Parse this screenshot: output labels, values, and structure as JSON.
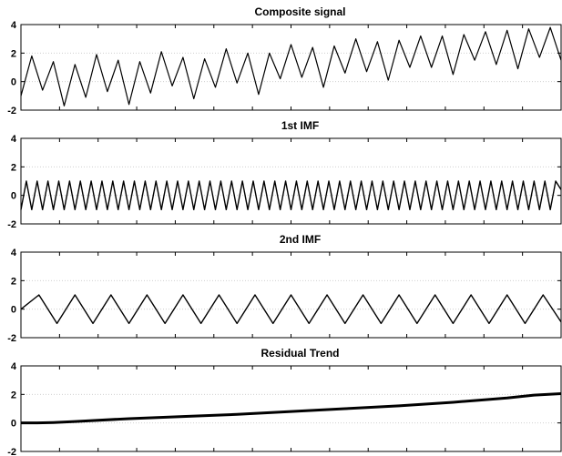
{
  "chart_data": [
    {
      "type": "line",
      "title": "Composite signal",
      "xlabel": "",
      "ylabel": "",
      "ylim": [
        -2,
        4
      ],
      "yticks": [
        -2,
        0,
        2,
        4
      ],
      "grid": "horizontal dotted",
      "x_range": [
        0,
        1000
      ],
      "series": [
        {
          "description": "sum of 1st IMF, 2nd IMF and residual trend",
          "color": "#000000",
          "x": [
            0,
            20,
            40,
            60,
            80,
            100,
            120,
            140,
            160,
            180,
            200,
            220,
            240,
            260,
            280,
            300,
            320,
            340,
            360,
            380,
            400,
            420,
            440,
            460,
            480,
            500,
            520,
            540,
            560,
            580,
            600,
            620,
            640,
            660,
            680,
            700,
            720,
            740,
            760,
            780,
            800,
            820,
            840,
            860,
            880,
            900,
            920,
            940,
            960,
            980,
            1000
          ],
          "y": [
            -1.0,
            1.8,
            -0.6,
            1.4,
            -1.7,
            1.2,
            -1.1,
            1.9,
            -0.7,
            1.5,
            -1.6,
            1.4,
            -0.8,
            2.1,
            -0.3,
            1.7,
            -1.2,
            1.6,
            -0.4,
            2.3,
            -0.1,
            2.0,
            -0.9,
            2.0,
            0.2,
            2.6,
            0.3,
            2.4,
            -0.4,
            2.5,
            0.6,
            3.0,
            0.7,
            2.8,
            0.1,
            2.9,
            1.0,
            3.2,
            1.0,
            3.2,
            0.5,
            3.3,
            1.5,
            3.5,
            1.2,
            3.6,
            0.9,
            3.7,
            1.7,
            3.8,
            1.5
          ]
        }
      ]
    },
    {
      "type": "line",
      "title": "1st IMF",
      "xlabel": "",
      "ylabel": "",
      "ylim": [
        -2,
        4
      ],
      "yticks": [
        -2,
        0,
        2,
        4
      ],
      "grid": "horizontal dotted",
      "x_range": [
        0,
        1000
      ],
      "series": [
        {
          "description": "triangle wave, amplitude 1, period 20",
          "color": "#000000",
          "x": [
            0,
            10,
            20,
            30,
            40,
            50,
            60,
            70,
            80,
            90,
            100,
            110,
            120,
            130,
            140,
            150,
            160,
            170,
            180,
            190,
            200,
            210,
            220,
            230,
            240,
            250,
            260,
            270,
            280,
            290,
            300,
            310,
            320,
            330,
            340,
            350,
            360,
            370,
            380,
            390,
            400,
            410,
            420,
            430,
            440,
            450,
            460,
            470,
            480,
            490,
            500,
            510,
            520,
            530,
            540,
            550,
            560,
            570,
            580,
            590,
            600,
            610,
            620,
            630,
            640,
            650,
            660,
            670,
            680,
            690,
            700,
            710,
            720,
            730,
            740,
            750,
            760,
            770,
            780,
            790,
            800,
            810,
            820,
            830,
            840,
            850,
            860,
            870,
            880,
            890,
            900,
            910,
            920,
            930,
            940,
            950,
            960,
            970,
            980,
            990,
            1000
          ],
          "y": [
            -1,
            1,
            -1,
            1,
            -1,
            1,
            -1,
            1,
            -1,
            1,
            -1,
            1,
            -1,
            1,
            -1,
            1,
            -1,
            1,
            -1,
            1,
            -1,
            1,
            -1,
            1,
            -1,
            1,
            -1,
            1,
            -1,
            1,
            -1,
            1,
            -1,
            1,
            -1,
            1,
            -1,
            1,
            -1,
            1,
            -1,
            1,
            -1,
            1,
            -1,
            1,
            -1,
            1,
            -1,
            1,
            -1,
            1,
            -1,
            1,
            -1,
            1,
            -1,
            1,
            -1,
            1,
            -1,
            1,
            -1,
            1,
            -1,
            1,
            -1,
            1,
            -1,
            1,
            -1,
            1,
            -1,
            1,
            -1,
            1,
            -1,
            1,
            -1,
            1,
            -1,
            1,
            -1,
            1,
            -1,
            1,
            -1,
            1,
            -1,
            1,
            -1,
            1,
            -1,
            1,
            -1,
            1,
            -1,
            1,
            -1,
            1,
            0.4
          ]
        }
      ]
    },
    {
      "type": "line",
      "title": "2nd IMF",
      "xlabel": "",
      "ylabel": "",
      "ylim": [
        -2,
        4
      ],
      "yticks": [
        -2,
        0,
        2,
        4
      ],
      "grid": "horizontal dotted",
      "x_range": [
        0,
        1000
      ],
      "series": [
        {
          "description": "sinusoid, amplitude 1, 15 cycles",
          "color": "#000000",
          "x": [
            0,
            33.3,
            66.7,
            100,
            133.3,
            166.7,
            200,
            233.3,
            266.7,
            300,
            333.3,
            366.7,
            400,
            433.3,
            466.7,
            500,
            533.3,
            566.7,
            600,
            633.3,
            666.7,
            700,
            733.3,
            766.7,
            800,
            833.3,
            866.7,
            900,
            933.3,
            966.7,
            1000
          ],
          "y": [
            0,
            1,
            -1,
            1,
            -1,
            1,
            -1,
            1,
            -1,
            1,
            -1,
            1,
            -1,
            1,
            -1,
            1,
            -1,
            1,
            -1,
            1,
            -1,
            1,
            -1,
            1,
            -1,
            1,
            -1,
            1,
            -1,
            1,
            -0.9
          ]
        }
      ]
    },
    {
      "type": "line",
      "title": "Residual Trend",
      "xlabel": "",
      "ylabel": "",
      "ylim": [
        -2,
        4
      ],
      "yticks": [
        -2,
        0,
        2,
        4
      ],
      "grid": "horizontal dotted",
      "x_range": [
        0,
        1000
      ],
      "series": [
        {
          "description": "slowly rising trend",
          "color": "#000000",
          "x": [
            0,
            30,
            60,
            100,
            200,
            300,
            400,
            500,
            600,
            700,
            800,
            850,
            900,
            950,
            1000
          ],
          "y": [
            0,
            0,
            0.03,
            0.1,
            0.3,
            0.45,
            0.6,
            0.8,
            1.0,
            1.2,
            1.45,
            1.6,
            1.75,
            1.95,
            2.05
          ]
        }
      ]
    }
  ]
}
